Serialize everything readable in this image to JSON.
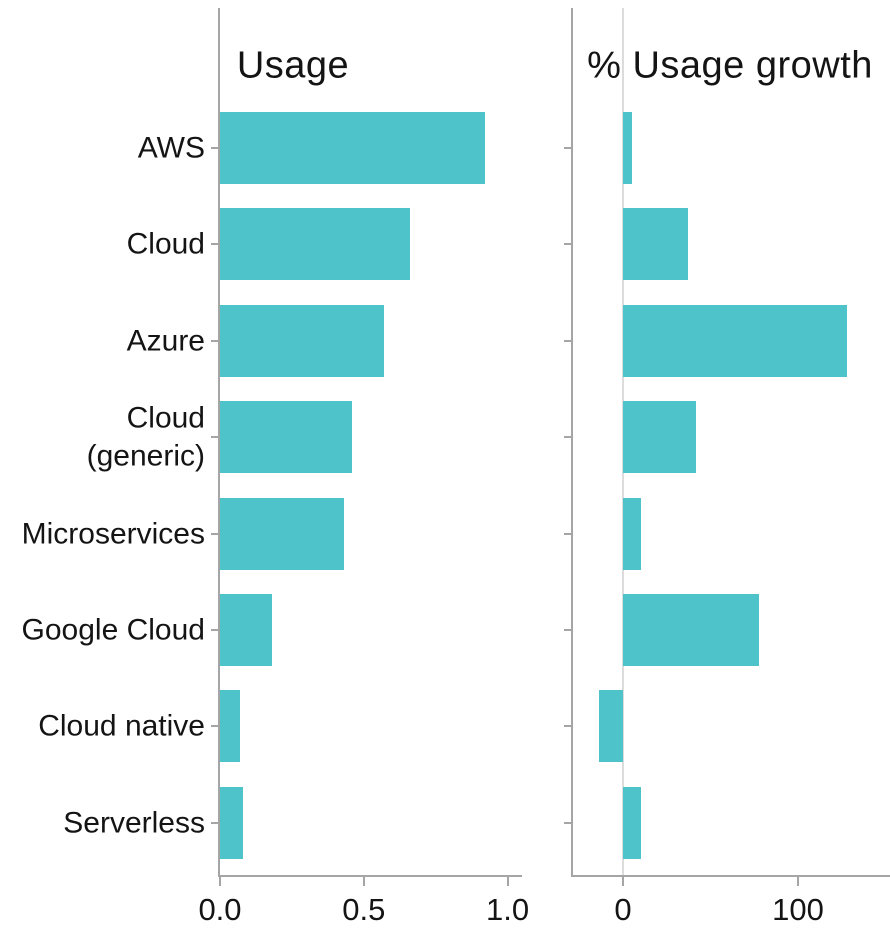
{
  "chart_data": {
    "type": "bar",
    "orientation": "horizontal",
    "grid": false,
    "legend": null,
    "categories": [
      "AWS",
      "Cloud",
      "Azure",
      "Cloud\n(generic)",
      "Microservices",
      "Google Cloud",
      "Cloud native",
      "Serverless"
    ],
    "panels": [
      {
        "title": "Usage",
        "xlabel": "",
        "xlim": [
          0,
          1.05
        ],
        "xticks": [
          0.0,
          0.5,
          1.0
        ],
        "xtick_labels": [
          "0.0",
          "0.5",
          "1.0"
        ],
        "zero_line": false,
        "series": [
          {
            "name": "Usage",
            "values": [
              0.92,
              0.66,
              0.57,
              0.46,
              0.43,
              0.18,
              0.07,
              0.08
            ]
          }
        ]
      },
      {
        "title": "% Usage growth",
        "xlabel": "",
        "xlim": [
          -28.6,
          150.9
        ],
        "xticks": [
          0,
          100
        ],
        "xtick_labels": [
          "0",
          "100"
        ],
        "zero_line": true,
        "series": [
          {
            "name": "% Usage growth",
            "values": [
              5,
              37,
              128,
              42,
              10,
              78,
              -14,
              10
            ]
          }
        ]
      }
    ],
    "colors": {
      "bar": "#4fc3ca",
      "axis": "#a5a5a5",
      "text": "#141414",
      "zero_line": "#dcdcdc"
    }
  }
}
